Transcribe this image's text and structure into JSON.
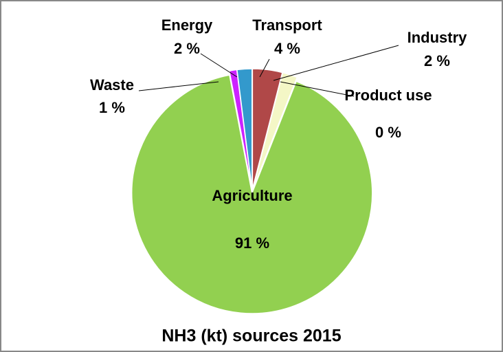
{
  "chart_data": {
    "type": "pie",
    "title": "NH3 (kt) sources 2015",
    "categories": [
      "Transport",
      "Industry",
      "Product use",
      "Agriculture",
      "Waste",
      "Energy"
    ],
    "values": [
      4,
      2,
      0,
      91,
      1,
      2
    ],
    "value_labels": [
      "4 %",
      "2 %",
      "0 %",
      "91 %",
      "1 %",
      "2 %"
    ],
    "colors": [
      "#b04848",
      "#f4f7c6",
      "#f79646",
      "#92d050",
      "#cc22ff",
      "#3399cc"
    ]
  }
}
